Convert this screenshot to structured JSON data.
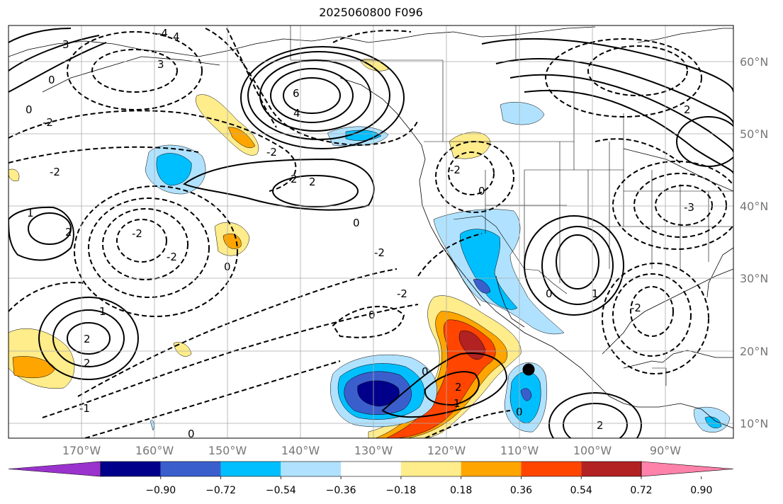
{
  "title": "2025060800 F096",
  "lon_ticks": [
    "170°W",
    "160°W",
    "150°W",
    "140°W",
    "130°W",
    "120°W",
    "110°W",
    "100°W",
    "90°W"
  ],
  "lat_ticks": [
    "60°N",
    "50°N",
    "40°N",
    "30°N",
    "20°N",
    "10°N"
  ],
  "colorbar": {
    "ticks": [
      "−0.90",
      "−0.72",
      "−0.54",
      "−0.36",
      "−0.18",
      "0.18",
      "0.36",
      "0.54",
      "0.72",
      "0.90"
    ],
    "colors": [
      "#9a32cd",
      "#00008b",
      "#3a5fcd",
      "#00bfff",
      "#b0e2ff",
      "#ffffff",
      "#ffec8b",
      "#ffa500",
      "#ff4500",
      "#b22222",
      "#ff82ab"
    ]
  },
  "contour_labels": [
    "6",
    "4",
    "3",
    "2",
    "1",
    "0",
    "-1",
    "-2",
    "-3",
    "-4"
  ],
  "marker": "storm-center-dot"
}
